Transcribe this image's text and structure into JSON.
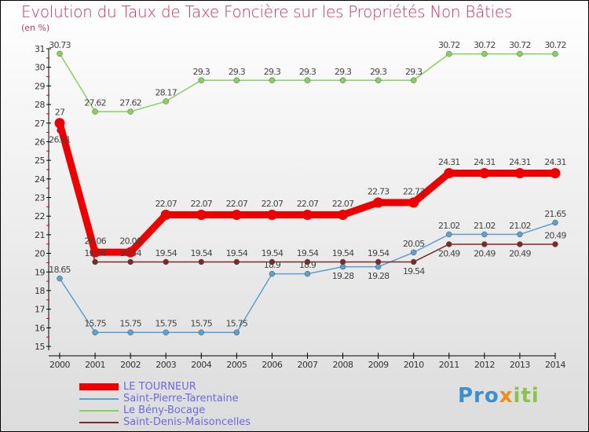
{
  "chart_data": {
    "type": "line",
    "title": "Evolution du Taux de Taxe Foncière sur les Propriétés Non Bâties",
    "ylabel": "(en %)",
    "xlabel": "",
    "ylim": [
      15,
      31
    ],
    "yticks": [
      15,
      16,
      17,
      18,
      19,
      20,
      21,
      22,
      23,
      24,
      25,
      26,
      27,
      28,
      29,
      30,
      31
    ],
    "x": [
      "2000",
      "2001",
      "2002",
      "2003",
      "2004",
      "2005",
      "2006",
      "2007",
      "2008",
      "2009",
      "2010",
      "2011",
      "2012",
      "2013",
      "2014"
    ],
    "legend_position": "bottom-left",
    "series": [
      {
        "name": "LE TOURNEUR",
        "color": "#ee0000",
        "values": [
          27,
          20.06,
          20.06,
          22.07,
          22.07,
          22.07,
          22.07,
          22.07,
          22.07,
          22.73,
          22.73,
          24.31,
          24.31,
          24.31,
          24.31
        ]
      },
      {
        "name": "Saint-Pierre-Tarentaine",
        "color": "#5aa0d0",
        "values": [
          18.65,
          15.75,
          15.75,
          15.75,
          15.75,
          15.75,
          18.9,
          18.9,
          19.28,
          19.28,
          20.05,
          21.02,
          21.02,
          21.02,
          21.65
        ]
      },
      {
        "name": "Le Bény-Bocage",
        "color": "#88d060",
        "values": [
          30.73,
          27.62,
          27.62,
          28.17,
          29.3,
          29.3,
          29.3,
          29.3,
          29.3,
          29.3,
          29.3,
          30.72,
          30.72,
          30.72,
          30.72
        ]
      },
      {
        "name": "Saint-Denis-Maisoncelles",
        "color": "#7a2a2a",
        "values": [
          26.61,
          19.54,
          19.54,
          19.54,
          19.54,
          19.54,
          19.54,
          19.54,
          19.54,
          19.54,
          19.54,
          20.49,
          20.49,
          20.49,
          20.49
        ]
      }
    ]
  },
  "logo": "Proxiti"
}
